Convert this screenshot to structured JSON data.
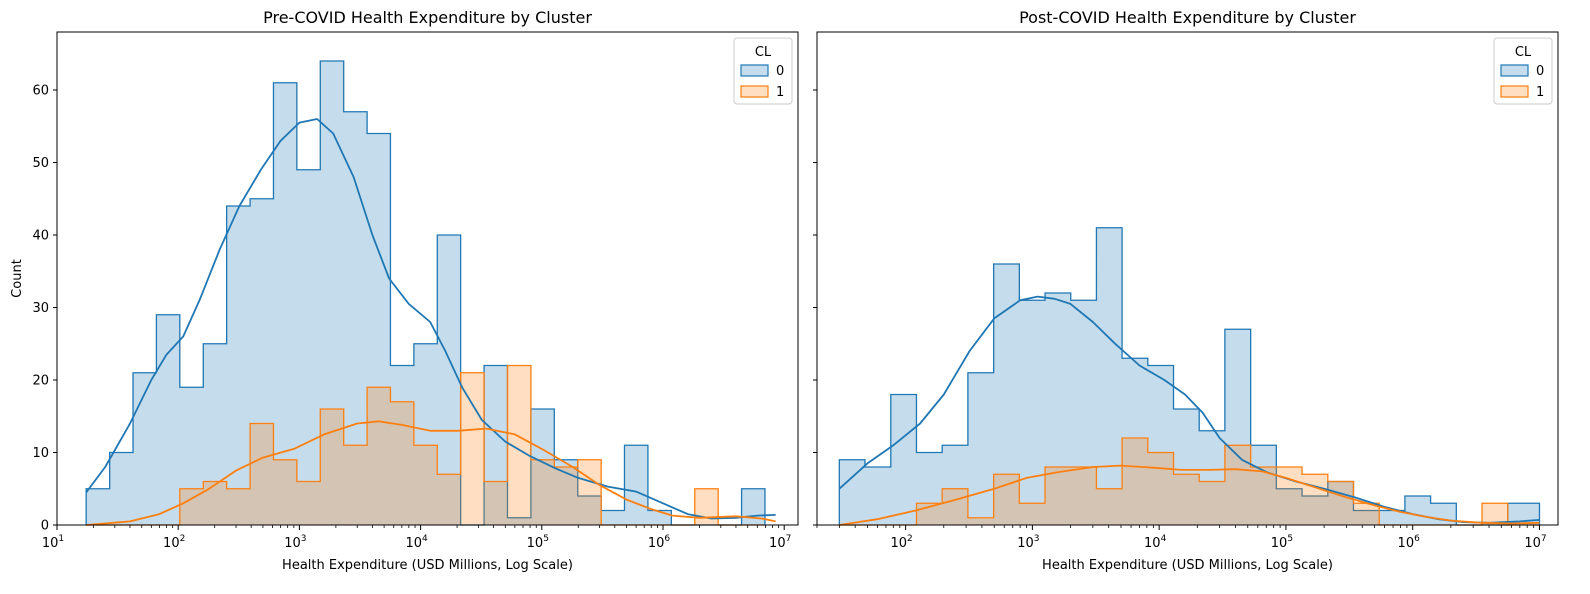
{
  "chart_data": [
    {
      "type": "histogram",
      "title": "Pre-COVID Health Expenditure by Cluster",
      "xlabel": "Health Expenditure (USD Millions, Log Scale)",
      "ylabel": "Count",
      "xscale": "log",
      "xlim": [
        10,
        13000000
      ],
      "ylim": [
        0,
        68
      ],
      "x_ticks": [
        {
          "base": "10",
          "exp": "1"
        },
        {
          "base": "10",
          "exp": "2"
        },
        {
          "base": "10",
          "exp": "3"
        },
        {
          "base": "10",
          "exp": "4"
        },
        {
          "base": "10",
          "exp": "5"
        },
        {
          "base": "10",
          "exp": "6"
        },
        {
          "base": "10",
          "exp": "7"
        }
      ],
      "y_ticks": [
        "0",
        "10",
        "20",
        "30",
        "40",
        "50",
        "60"
      ],
      "bin_edges": [
        17.4,
        27.2,
        42.4,
        66.1,
        103.1,
        161,
        251,
        392,
        611,
        953,
        1487,
        2320,
        3620,
        5640,
        8800,
        13730,
        21400,
        33400,
        52100,
        81300,
        126800,
        198000,
        309000,
        481000,
        751000,
        1172000,
        1829000,
        2853000,
        4450000,
        6940000
      ],
      "legend": {
        "title": "CL",
        "placement": "upper-right"
      },
      "series": [
        {
          "name": "0",
          "color": "#1f77b4",
          "counts": [
            5,
            10,
            21,
            29,
            19,
            25,
            44,
            45,
            61,
            49,
            64,
            57,
            54,
            22,
            25,
            40,
            0,
            22,
            1,
            16,
            9,
            4,
            2,
            11,
            2,
            0,
            0,
            0,
            5
          ],
          "kde": [
            [
              17.4,
              4.5
            ],
            [
              25,
              8
            ],
            [
              40,
              14
            ],
            [
              60,
              20
            ],
            [
              80,
              23.5
            ],
            [
              110,
              26
            ],
            [
              150,
              31
            ],
            [
              220,
              38
            ],
            [
              320,
              44
            ],
            [
              480,
              49
            ],
            [
              700,
              53
            ],
            [
              1000,
              55.5
            ],
            [
              1400,
              56
            ],
            [
              1900,
              54
            ],
            [
              2800,
              48
            ],
            [
              4000,
              40
            ],
            [
              5500,
              34
            ],
            [
              8000,
              30.5
            ],
            [
              12000,
              28
            ],
            [
              16000,
              24
            ],
            [
              22000,
              19
            ],
            [
              32000,
              14.5
            ],
            [
              50000,
              11.5
            ],
            [
              80000,
              9.5
            ],
            [
              130000,
              7.8
            ],
            [
              200000,
              6.5
            ],
            [
              350000,
              5.3
            ],
            [
              600000,
              4.6
            ],
            [
              1000000,
              3
            ],
            [
              1600000,
              1.5
            ],
            [
              2500000,
              0.9
            ],
            [
              4000000,
              1
            ],
            [
              6000000,
              1.3
            ],
            [
              8500000,
              1.4
            ]
          ]
        },
        {
          "name": "1",
          "color": "#ff7f0e",
          "counts": [
            0,
            0,
            0,
            0,
            5,
            6,
            5,
            14,
            9,
            6,
            16,
            11,
            19,
            17,
            11,
            7,
            21,
            6,
            22,
            9,
            8,
            9,
            0,
            0,
            0,
            0,
            5,
            0,
            0
          ],
          "kde": [
            [
              17.4,
              0
            ],
            [
              40,
              0.5
            ],
            [
              70,
              1.5
            ],
            [
              110,
              3
            ],
            [
              180,
              5
            ],
            [
              300,
              7.5
            ],
            [
              500,
              9.3
            ],
            [
              900,
              10.5
            ],
            [
              1600,
              12.5
            ],
            [
              3000,
              14
            ],
            [
              4500,
              14.3
            ],
            [
              7000,
              13.8
            ],
            [
              12000,
              13
            ],
            [
              20000,
              13
            ],
            [
              35000,
              13.3
            ],
            [
              60000,
              12.5
            ],
            [
              100000,
              10.5
            ],
            [
              180000,
              8
            ],
            [
              300000,
              5.5
            ],
            [
              500000,
              3.5
            ],
            [
              800000,
              2.2
            ],
            [
              1200000,
              1.3
            ],
            [
              2000000,
              1
            ],
            [
              4000000,
              1.2
            ],
            [
              6500000,
              0.9
            ],
            [
              8500000,
              0.5
            ]
          ]
        }
      ]
    },
    {
      "type": "histogram",
      "title": "Post-COVID Health Expenditure by Cluster",
      "xlabel": "Health Expenditure (USD Millions, Log Scale)",
      "ylabel": "",
      "xscale": "log",
      "xlim": [
        20,
        14000000
      ],
      "ylim": [
        0,
        68
      ],
      "x_ticks": [
        {
          "base": "10",
          "exp": "2"
        },
        {
          "base": "10",
          "exp": "3"
        },
        {
          "base": "10",
          "exp": "4"
        },
        {
          "base": "10",
          "exp": "5"
        },
        {
          "base": "10",
          "exp": "6"
        },
        {
          "base": "10",
          "exp": "7"
        }
      ],
      "y_ticks": [
        "0",
        "10",
        "20",
        "30",
        "40",
        "50",
        "60"
      ],
      "bin_edges": [
        30,
        47.8,
        76.4,
        121.8,
        194.2,
        310,
        495,
        789,
        1258,
        2007,
        3200,
        5100,
        8140,
        12980,
        20700,
        33000,
        52700,
        84000,
        134000,
        214000,
        341000,
        544000,
        868000,
        1384000,
        2208000,
        3520000,
        5620000,
        10000000
      ],
      "legend": {
        "title": "CL",
        "placement": "upper-right"
      },
      "series": [
        {
          "name": "0",
          "color": "#1f77b4",
          "counts": [
            9,
            8,
            18,
            10,
            11,
            21,
            36,
            31,
            32,
            31,
            41,
            23,
            22,
            16,
            13,
            27,
            11,
            5,
            4,
            6,
            2,
            2,
            4,
            3,
            0,
            0,
            3
          ],
          "kde": [
            [
              30,
              5
            ],
            [
              50,
              8.5
            ],
            [
              80,
              11
            ],
            [
              130,
              14
            ],
            [
              200,
              18
            ],
            [
              320,
              24
            ],
            [
              500,
              28.5
            ],
            [
              800,
              31
            ],
            [
              1100,
              31.5
            ],
            [
              1500,
              31.2
            ],
            [
              2000,
              30.5
            ],
            [
              3000,
              28
            ],
            [
              4500,
              25
            ],
            [
              7000,
              22
            ],
            [
              11000,
              20
            ],
            [
              16000,
              18
            ],
            [
              22000,
              15.5
            ],
            [
              30000,
              12
            ],
            [
              45000,
              9
            ],
            [
              70000,
              7.3
            ],
            [
              120000,
              6
            ],
            [
              200000,
              5
            ],
            [
              350000,
              3.8
            ],
            [
              600000,
              2.5
            ],
            [
              1000000,
              1.5
            ],
            [
              1600000,
              0.8
            ],
            [
              2500000,
              0.4
            ],
            [
              4000000,
              0.3
            ],
            [
              7000000,
              0.5
            ],
            [
              10000000,
              0.7
            ]
          ]
        },
        {
          "name": "1",
          "color": "#ff7f0e",
          "counts": [
            0,
            0,
            0,
            3,
            5,
            1,
            7,
            3,
            8,
            8,
            5,
            12,
            10,
            7,
            6,
            11,
            8,
            8,
            7,
            6,
            3,
            0,
            0,
            0,
            0,
            3,
            0
          ],
          "kde": [
            [
              30,
              0
            ],
            [
              60,
              0.8
            ],
            [
              120,
              2
            ],
            [
              250,
              3.5
            ],
            [
              500,
              5
            ],
            [
              900,
              6.5
            ],
            [
              1600,
              7.3
            ],
            [
              3000,
              8
            ],
            [
              5000,
              8.2
            ],
            [
              9000,
              7.9
            ],
            [
              15000,
              7.6
            ],
            [
              25000,
              7.6
            ],
            [
              40000,
              7.7
            ],
            [
              65000,
              7.4
            ],
            [
              100000,
              6.5
            ],
            [
              170000,
              5.2
            ],
            [
              300000,
              3.8
            ],
            [
              500000,
              2.7
            ],
            [
              800000,
              1.8
            ],
            [
              1300000,
              1.1
            ],
            [
              2000000,
              0.6
            ],
            [
              3500000,
              0.3
            ],
            [
              6000000,
              0.2
            ],
            [
              10000000,
              0.3
            ]
          ]
        }
      ]
    }
  ]
}
